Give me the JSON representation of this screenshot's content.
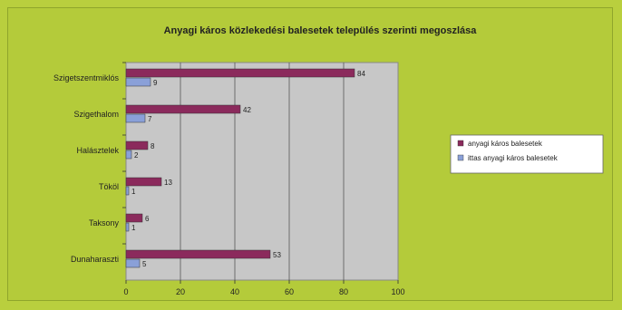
{
  "chart_data": {
    "type": "bar",
    "orientation": "horizontal",
    "title": "Anyagi káros közlekedési balesetek település szerinti megoszlása",
    "categories": [
      "Szigetszentmiklós",
      "Szigethalom",
      "Halásztelek",
      "Tököl",
      "Taksony",
      "Dunaharaszti"
    ],
    "series": [
      {
        "name": "anyagi káros balesetek",
        "values": [
          84,
          42,
          8,
          13,
          6,
          53
        ],
        "color": "#8b2a5c"
      },
      {
        "name": "ittas anyagi káros balesetek",
        "values": [
          9,
          7,
          2,
          1,
          1,
          5
        ],
        "color": "#8aa0d8"
      }
    ],
    "xlim": [
      0,
      100
    ],
    "xticks": [
      "0",
      "20",
      "40",
      "60",
      "80",
      "100"
    ],
    "grid": true,
    "legend": "right",
    "plot_bg": "#c7c7c7"
  }
}
